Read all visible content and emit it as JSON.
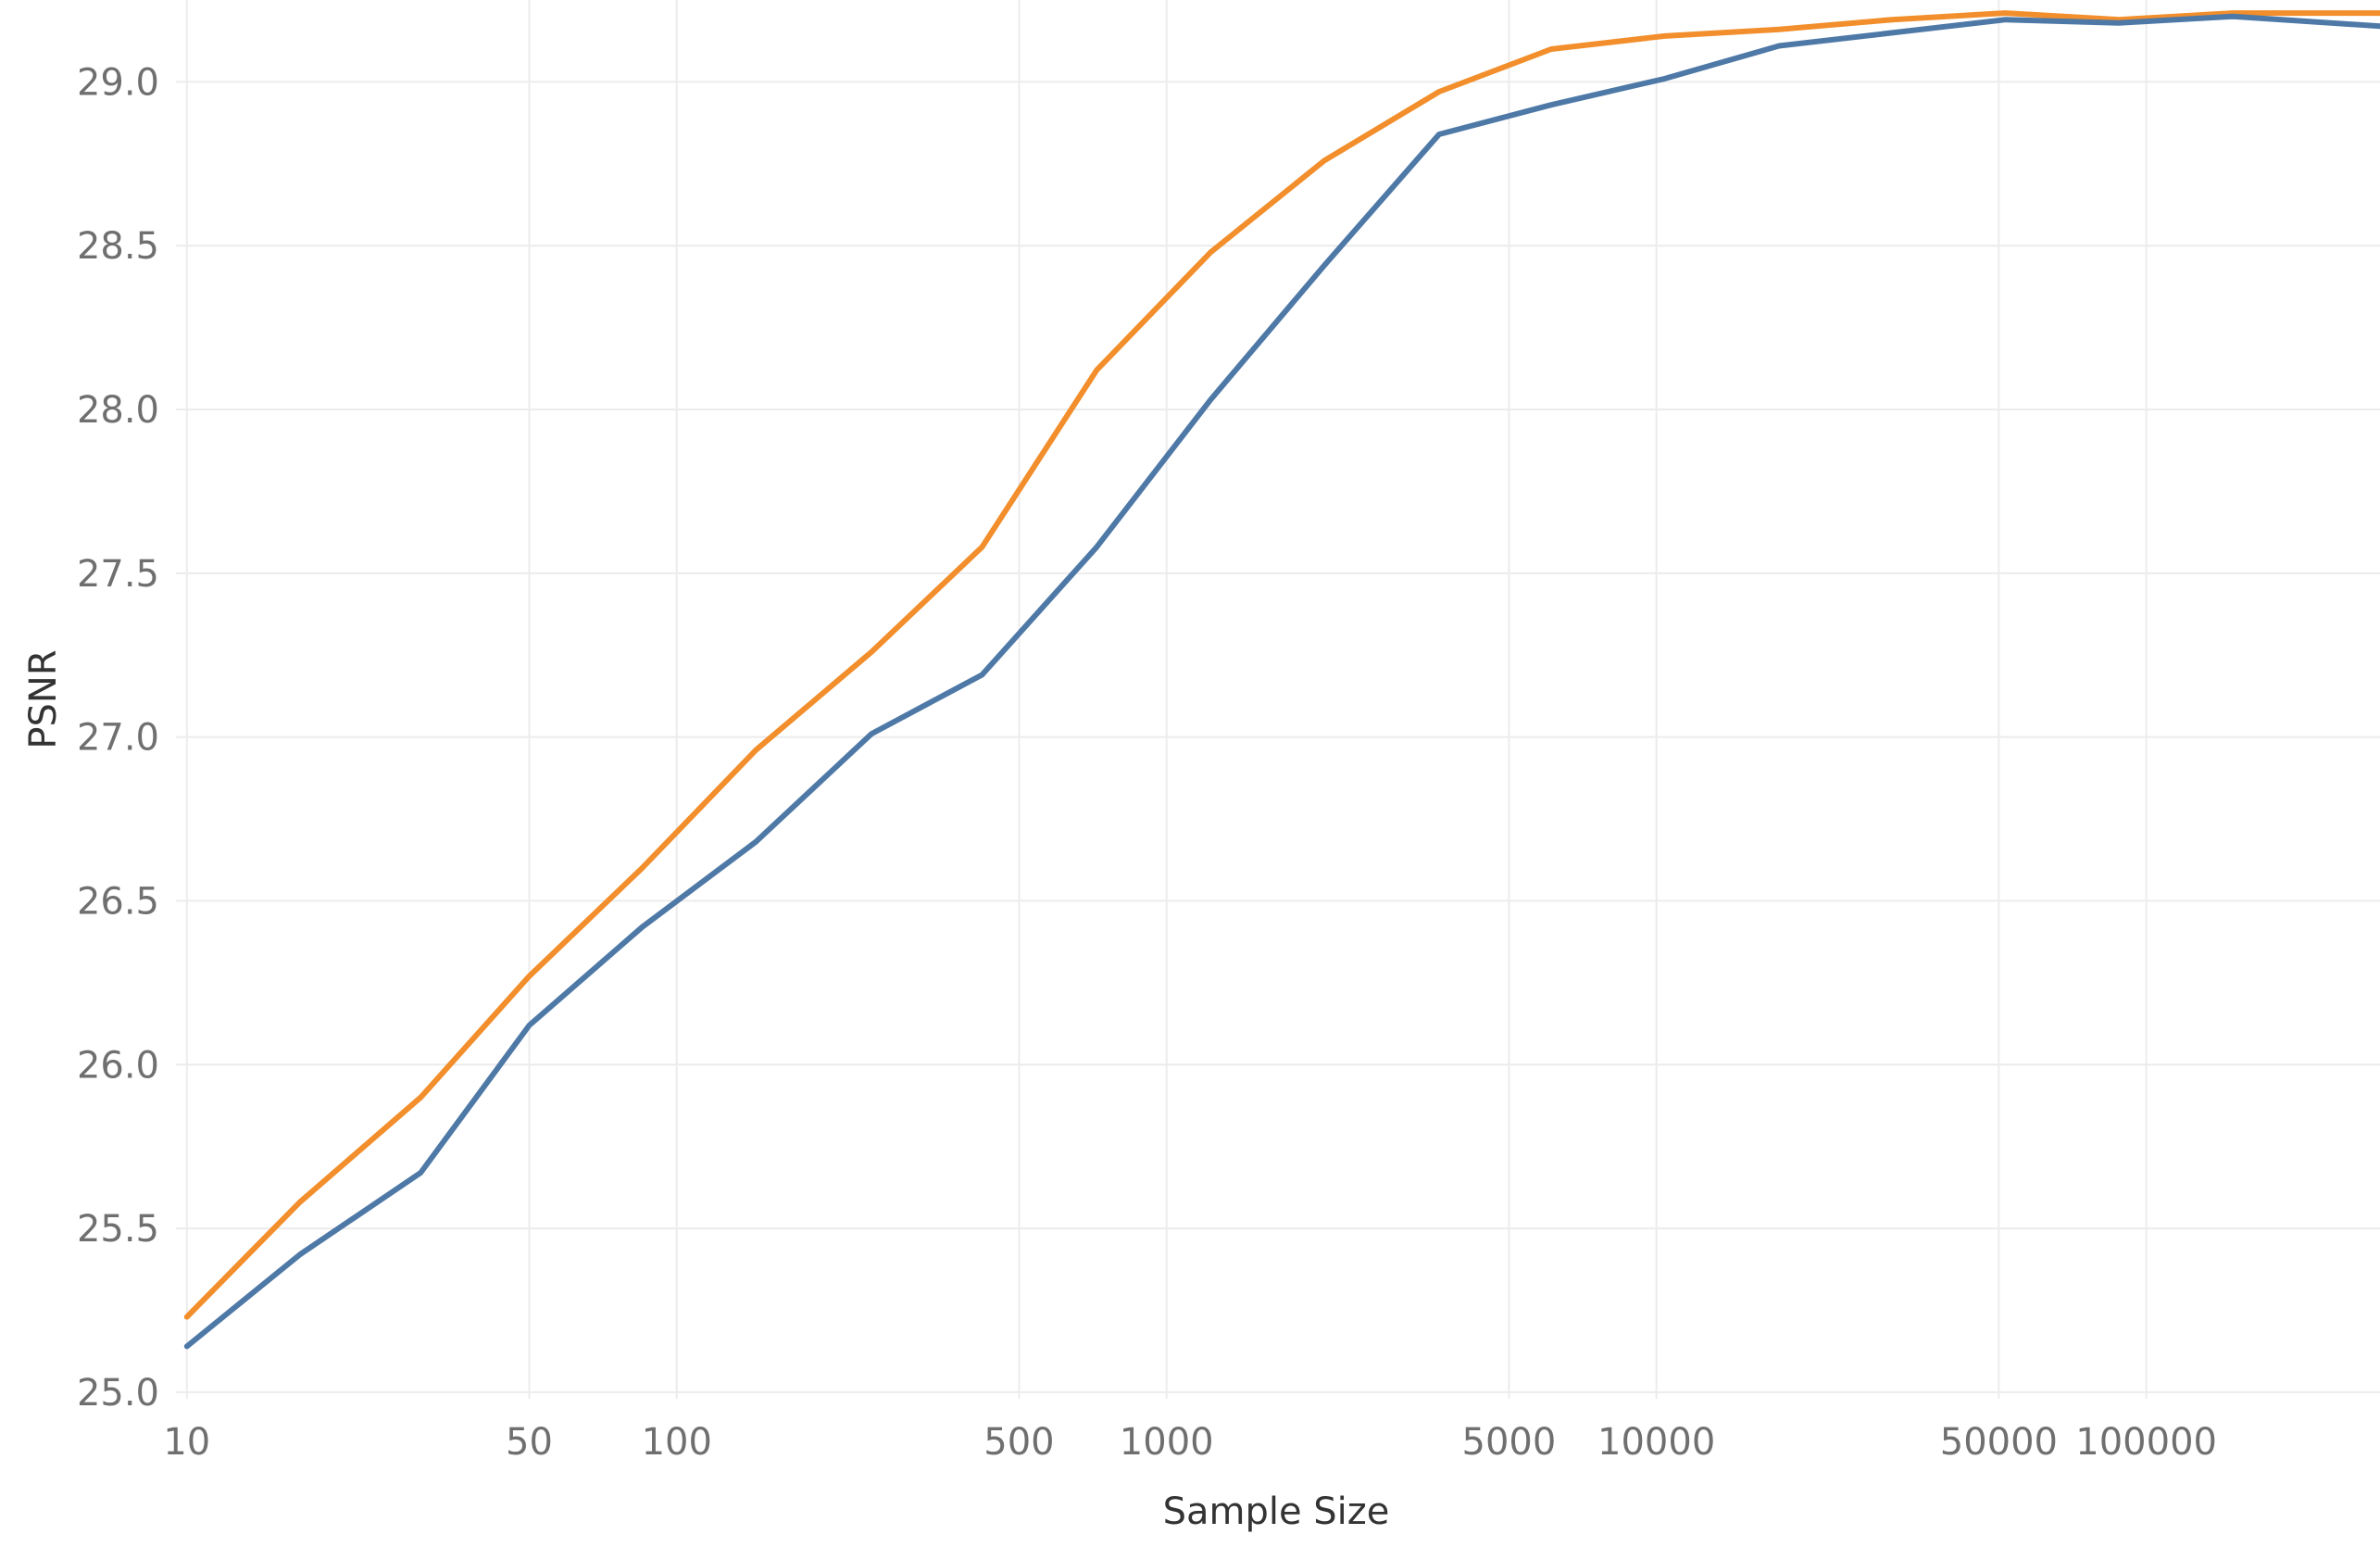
{
  "chart_data": {
    "type": "line",
    "xlabel": "Sample Size",
    "ylabel": "PSNR",
    "x_scale": "log",
    "xlim": [
      9.5,
      300000
    ],
    "ylim": [
      24.98,
      29.25
    ],
    "x_ticks": [
      10,
      50,
      100,
      500,
      1000,
      5000,
      10000,
      50000,
      100000
    ],
    "x_tick_labels": [
      "10",
      "50",
      "100",
      "500",
      "1000",
      "5000",
      "10000",
      "50000",
      "100000"
    ],
    "y_ticks": [
      25.0,
      25.5,
      26.0,
      26.5,
      27.0,
      27.5,
      28.0,
      28.5,
      29.0
    ],
    "y_tick_labels": [
      "25.0",
      "25.5",
      "26.0",
      "26.5",
      "27.0",
      "27.5",
      "28.0",
      "28.5",
      "29.0"
    ],
    "grid": true,
    "series": [
      {
        "color": "#f28e2b",
        "x": [
          10,
          17,
          30,
          50,
          85,
          145,
          250,
          420,
          720,
          1230,
          2100,
          3600,
          6100,
          10400,
          17800,
          30300,
          51600,
          87900,
          150000,
          300000
        ],
        "y": [
          25.23,
          25.58,
          25.9,
          26.27,
          26.6,
          26.96,
          27.26,
          27.58,
          28.12,
          28.48,
          28.76,
          28.97,
          29.1,
          29.14,
          29.16,
          29.19,
          29.21,
          29.19,
          29.21,
          29.21
        ]
      },
      {
        "color": "#4e79a7",
        "x": [
          10,
          17,
          30,
          50,
          85,
          145,
          250,
          420,
          720,
          1230,
          2100,
          3600,
          6100,
          10400,
          17800,
          30300,
          51600,
          87900,
          150000,
          300000
        ],
        "y": [
          25.14,
          25.42,
          25.67,
          26.12,
          26.42,
          26.68,
          27.01,
          27.19,
          27.58,
          28.03,
          28.44,
          28.84,
          28.93,
          29.01,
          29.11,
          29.15,
          29.19,
          29.18,
          29.2,
          29.17
        ]
      }
    ]
  }
}
